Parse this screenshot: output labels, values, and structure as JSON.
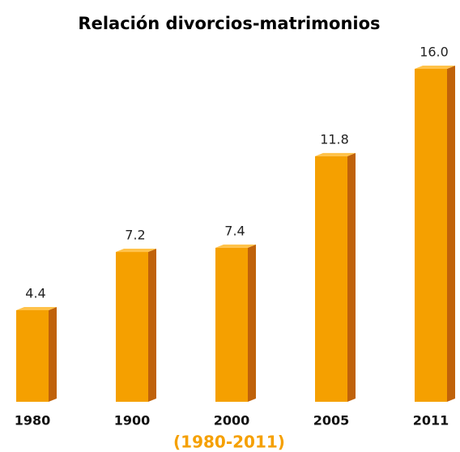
{
  "chart_data": {
    "type": "bar",
    "title": "Relación divorcios-matrimonios",
    "subtitle": "(1980-2011)",
    "categories": [
      "1980",
      "1900",
      "2000",
      "2005",
      "2011"
    ],
    "values": [
      4.4,
      7.2,
      7.4,
      11.8,
      16.0
    ],
    "value_labels": [
      "4.4",
      "7.2",
      "7.4",
      "11.8",
      "16.0"
    ],
    "color": "#f5a000"
  }
}
